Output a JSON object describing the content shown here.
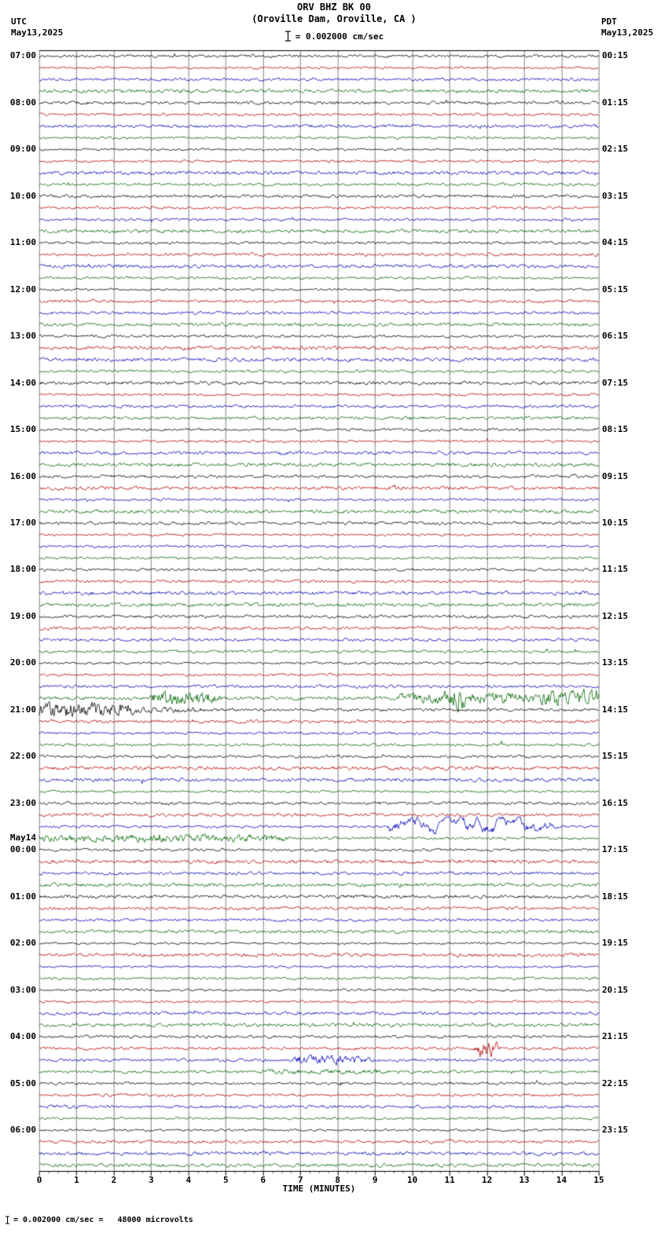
{
  "title": {
    "line1": "ORV BHZ BK 00",
    "line2": "(Oroville Dam, Oroville, CA )"
  },
  "header": {
    "left_tz": "UTC",
    "left_date": "May13,2025",
    "right_tz": "PDT",
    "right_date": "May13,2025",
    "scale_label": "= 0.002000 cm/sec"
  },
  "footer": {
    "scale_note": "= 0.002000 cm/sec =   48000 microvolts",
    "xlabel": "TIME (MINUTES)"
  },
  "colors": {
    "black": "#000000",
    "red": "#b40000",
    "blue": "#0000b4",
    "green": "#006400",
    "grid": "#000000",
    "background": "#ffffff"
  },
  "chart_data": {
    "type": "line",
    "subtype": "helicorder-seismogram",
    "station": "ORV BHZ BK 00",
    "location": "Oroville Dam, Oroville, CA",
    "minutes_per_row": 15,
    "rows_count": 96,
    "x_range": [
      0,
      15
    ],
    "x_ticks": [
      "0",
      "1",
      "2",
      "3",
      "4",
      "5",
      "6",
      "7",
      "8",
      "9",
      "10",
      "11",
      "12",
      "13",
      "14",
      "15"
    ],
    "trace_color_cycle": [
      "black",
      "red",
      "blue",
      "green"
    ],
    "utc_hour_labels": [
      "07:00",
      "08:00",
      "09:00",
      "10:00",
      "11:00",
      "12:00",
      "13:00",
      "14:00",
      "15:00",
      "16:00",
      "17:00",
      "18:00",
      "19:00",
      "20:00",
      "21:00",
      "22:00",
      "23:00",
      "00:00",
      "01:00",
      "02:00",
      "03:00",
      "04:00",
      "05:00",
      "06:00"
    ],
    "pdt_hour_labels": [
      "00:15",
      "01:15",
      "02:15",
      "03:15",
      "04:15",
      "05:15",
      "06:15",
      "07:15",
      "08:15",
      "09:15",
      "10:15",
      "11:15",
      "12:15",
      "13:15",
      "14:15",
      "15:15",
      "16:15",
      "17:15",
      "18:15",
      "19:15",
      "20:15",
      "21:15",
      "22:15",
      "23:15"
    ],
    "day_change_label": "May14",
    "day_change_index": 17,
    "events": [
      {
        "row": 55,
        "start": 3.1,
        "end": 4.6,
        "amp": 4.0
      },
      {
        "row": 55,
        "start": 9.7,
        "end": 13.2,
        "amp": 3.0
      },
      {
        "row": 55,
        "start": 10.9,
        "end": 11.4,
        "amp": 7.0
      },
      {
        "row": 55,
        "start": 13.5,
        "end": 15.0,
        "amp": 4.5
      },
      {
        "row": 56,
        "start": 0.0,
        "end": 2.4,
        "amp": 5.0
      },
      {
        "row": 56,
        "start": 2.4,
        "end": 4.2,
        "amp": 2.0
      },
      {
        "row": 66,
        "start": 9.4,
        "end": 13.6,
        "amp": 2.4,
        "smooth": true
      },
      {
        "row": 67,
        "start": 0.0,
        "end": 6.5,
        "amp": 2.6
      },
      {
        "row": 85,
        "start": 11.8,
        "end": 12.15,
        "amp": 6.0
      },
      {
        "row": 86,
        "start": 6.9,
        "end": 8.6,
        "amp": 3.2
      },
      {
        "row": 87,
        "start": 6.0,
        "end": 9.8,
        "amp": 1.7
      }
    ]
  }
}
